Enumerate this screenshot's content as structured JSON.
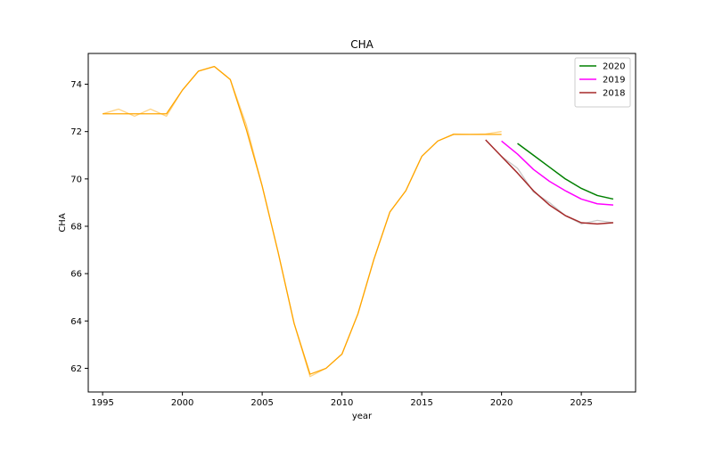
{
  "chart_data": {
    "type": "line",
    "title": "CHA",
    "xlabel": "year",
    "ylabel": "CHA",
    "xlim": [
      1994.1,
      2028.4
    ],
    "ylim": [
      61.0,
      75.3
    ],
    "grid": false,
    "legend_position": "top-right",
    "x_ticks": [
      1995,
      2000,
      2005,
      2010,
      2015,
      2020,
      2025
    ],
    "y_ticks": [
      62,
      64,
      66,
      68,
      70,
      72,
      74
    ],
    "series": [
      {
        "color": "#ffd27f",
        "x": [
          1995,
          1996,
          1997,
          1998,
          1999,
          2000,
          2001,
          2002,
          2003,
          2004,
          2005,
          2006,
          2007,
          2008,
          2009,
          2010,
          2011,
          2012,
          2013,
          2014,
          2015,
          2016,
          2017,
          2018,
          2019,
          2020
        ],
        "y": [
          72.75,
          72.95,
          72.65,
          72.95,
          72.65,
          73.75,
          74.55,
          74.75,
          74.2,
          72.3,
          69.7,
          66.9,
          63.9,
          61.65,
          62.0,
          62.6,
          64.3,
          66.6,
          68.6,
          69.5,
          70.95,
          71.6,
          71.9,
          71.88,
          71.9,
          72.0
        ]
      },
      {
        "color": "#c8c8c8",
        "x": [
          2020,
          2021,
          2022,
          2023,
          2024,
          2025,
          2026,
          2027
        ],
        "y": [
          70.95,
          70.45,
          69.45,
          69.0,
          68.45,
          68.1,
          68.25,
          68.15
        ]
      },
      {
        "color": "#ffa500",
        "x": [
          1995,
          1996,
          1997,
          1998,
          1999,
          2000,
          2001,
          2002,
          2003,
          2004,
          2005,
          2006,
          2007,
          2008,
          2009,
          2010,
          2011,
          2012,
          2013,
          2014,
          2015,
          2016,
          2017,
          2018,
          2019,
          2020
        ],
        "y": [
          72.75,
          72.75,
          72.75,
          72.75,
          72.75,
          73.75,
          74.55,
          74.75,
          74.2,
          72.1,
          69.7,
          66.9,
          63.9,
          61.75,
          62.0,
          62.6,
          64.3,
          66.6,
          68.6,
          69.5,
          70.95,
          71.6,
          71.88,
          71.88,
          71.88,
          71.88
        ]
      },
      {
        "name": "2020",
        "color": "#008000",
        "x": [
          2021,
          2022,
          2023,
          2024,
          2025,
          2026,
          2027
        ],
        "y": [
          71.5,
          71.0,
          70.5,
          70.0,
          69.6,
          69.3,
          69.15
        ]
      },
      {
        "name": "2019",
        "color": "#ff00ff",
        "x": [
          2020,
          2021,
          2022,
          2023,
          2024,
          2025,
          2026,
          2027
        ],
        "y": [
          71.6,
          71.05,
          70.4,
          69.9,
          69.5,
          69.15,
          68.95,
          68.9
        ]
      },
      {
        "name": "2018",
        "color": "#a52a2a",
        "x": [
          2019,
          2020,
          2021,
          2022,
          2023,
          2024,
          2025,
          2026,
          2027
        ],
        "y": [
          71.65,
          70.95,
          70.25,
          69.5,
          68.9,
          68.45,
          68.15,
          68.1,
          68.15
        ]
      }
    ]
  }
}
